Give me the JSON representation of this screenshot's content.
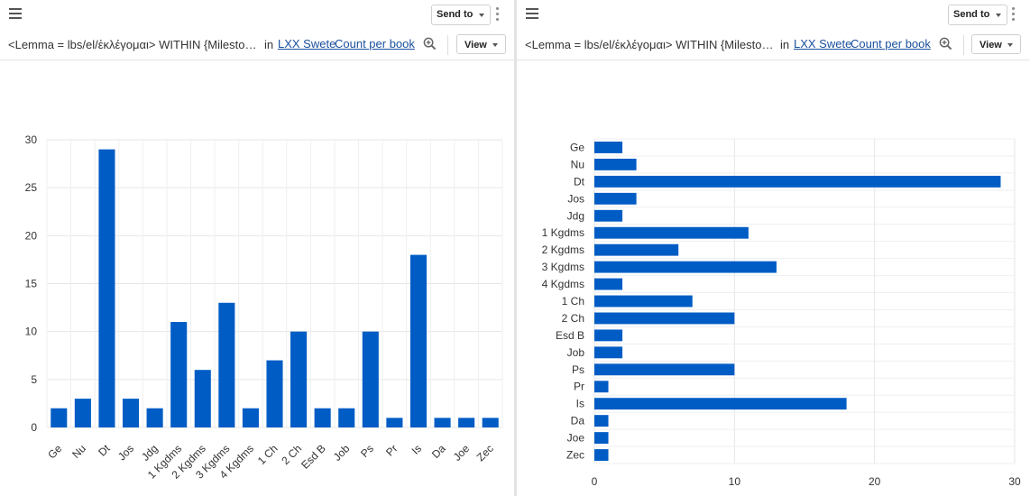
{
  "accent_color": "#005cc5",
  "left_pane": {
    "send_to_label": "Send to",
    "query_text": "<Lemma = lbs/el/ἐκλέγομαι> WITHIN {Milesto…",
    "in_label": "in",
    "corpus_link": "LXX Swete",
    "report_link": "Count per book",
    "view_label": "View",
    "icons": [
      "hamburger-menu-icon",
      "caret-down-icon",
      "more-vert-icon",
      "zoom-in-icon"
    ]
  },
  "right_pane": {
    "send_to_label": "Send to",
    "query_text": "<Lemma = lbs/el/ἐκλέγομαι> WITHIN {Milesto…",
    "in_label": "in",
    "corpus_link": "LXX Swete",
    "report_link": "Count per book",
    "view_label": "View",
    "icons": [
      "hamburger-menu-icon",
      "caret-down-icon",
      "more-vert-icon",
      "zoom-in-icon"
    ]
  },
  "chart_data": [
    {
      "type": "bar",
      "orientation": "vertical",
      "categories": [
        "Ge",
        "Nu",
        "Dt",
        "Jos",
        "Jdg",
        "1 Kgdms",
        "2 Kgdms",
        "3 Kgdms",
        "4 Kgdms",
        "1 Ch",
        "2 Ch",
        "Esd B",
        "Job",
        "Ps",
        "Pr",
        "Is",
        "Da",
        "Joe",
        "Zec"
      ],
      "values": [
        2,
        3,
        29,
        3,
        2,
        11,
        6,
        13,
        2,
        7,
        10,
        2,
        2,
        10,
        1,
        18,
        1,
        1,
        1
      ],
      "ylim": [
        0,
        30
      ],
      "yticks": [
        0,
        5,
        10,
        15,
        20,
        25,
        30
      ],
      "grid": true,
      "color": "#005cc5"
    },
    {
      "type": "bar",
      "orientation": "horizontal",
      "categories": [
        "Ge",
        "Nu",
        "Dt",
        "Jos",
        "Jdg",
        "1 Kgdms",
        "2 Kgdms",
        "3 Kgdms",
        "4 Kgdms",
        "1 Ch",
        "2 Ch",
        "Esd B",
        "Job",
        "Ps",
        "Pr",
        "Is",
        "Da",
        "Joe",
        "Zec"
      ],
      "values": [
        2,
        3,
        29,
        3,
        2,
        11,
        6,
        13,
        2,
        7,
        10,
        2,
        2,
        10,
        1,
        18,
        1,
        1,
        1
      ],
      "xlim": [
        0,
        30
      ],
      "xticks": [
        0,
        10,
        20,
        30
      ],
      "grid": true,
      "color": "#005cc5"
    }
  ]
}
